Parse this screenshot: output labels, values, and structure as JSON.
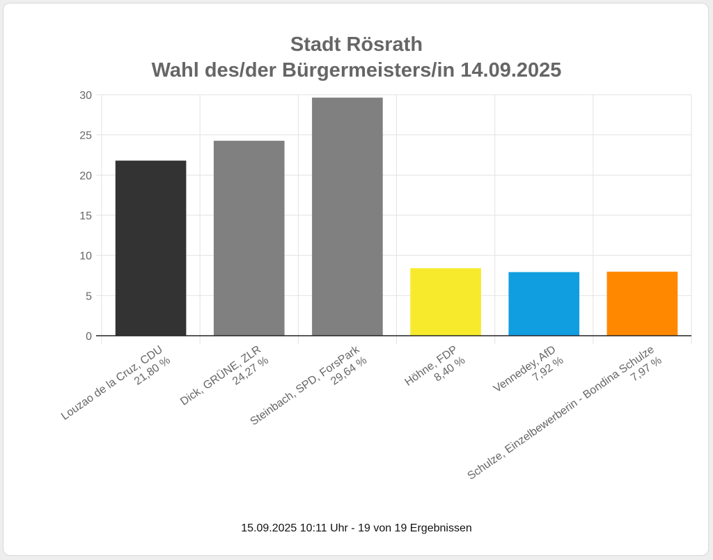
{
  "chart_data": {
    "type": "bar",
    "title_line1": "Stadt Rösrath",
    "title_line2": "Wahl des/der Bürgermeisters/in 14.09.2025",
    "categories": [
      {
        "name": "Louzao de la Cruz, CDU",
        "pct_label": "21,80 %"
      },
      {
        "name": "Dick, GRÜNE, ZLR",
        "pct_label": "24,27 %"
      },
      {
        "name": "Steinbach, SPD, ForsPark",
        "pct_label": "29,64 %"
      },
      {
        "name": "Höhne, FDP",
        "pct_label": "8,40 %"
      },
      {
        "name": "Vennedey, AfD",
        "pct_label": "7,92 %"
      },
      {
        "name": "Schulze, Einzelbewerberin - Bondina Schulze",
        "pct_label": "7,97 %"
      }
    ],
    "values": [
      21.8,
      24.27,
      29.64,
      8.4,
      7.92,
      7.97
    ],
    "colors": [
      "#333333",
      "#808080",
      "#808080",
      "#f7ea2d",
      "#119ee0",
      "#ff8800"
    ],
    "ylim": [
      0,
      30
    ],
    "yticks": [
      0,
      5,
      10,
      15,
      20,
      25,
      30
    ],
    "grid": true,
    "legend": "none"
  },
  "footer": "15.09.2025 10:11 Uhr - 19 von 19 Ergebnissen"
}
